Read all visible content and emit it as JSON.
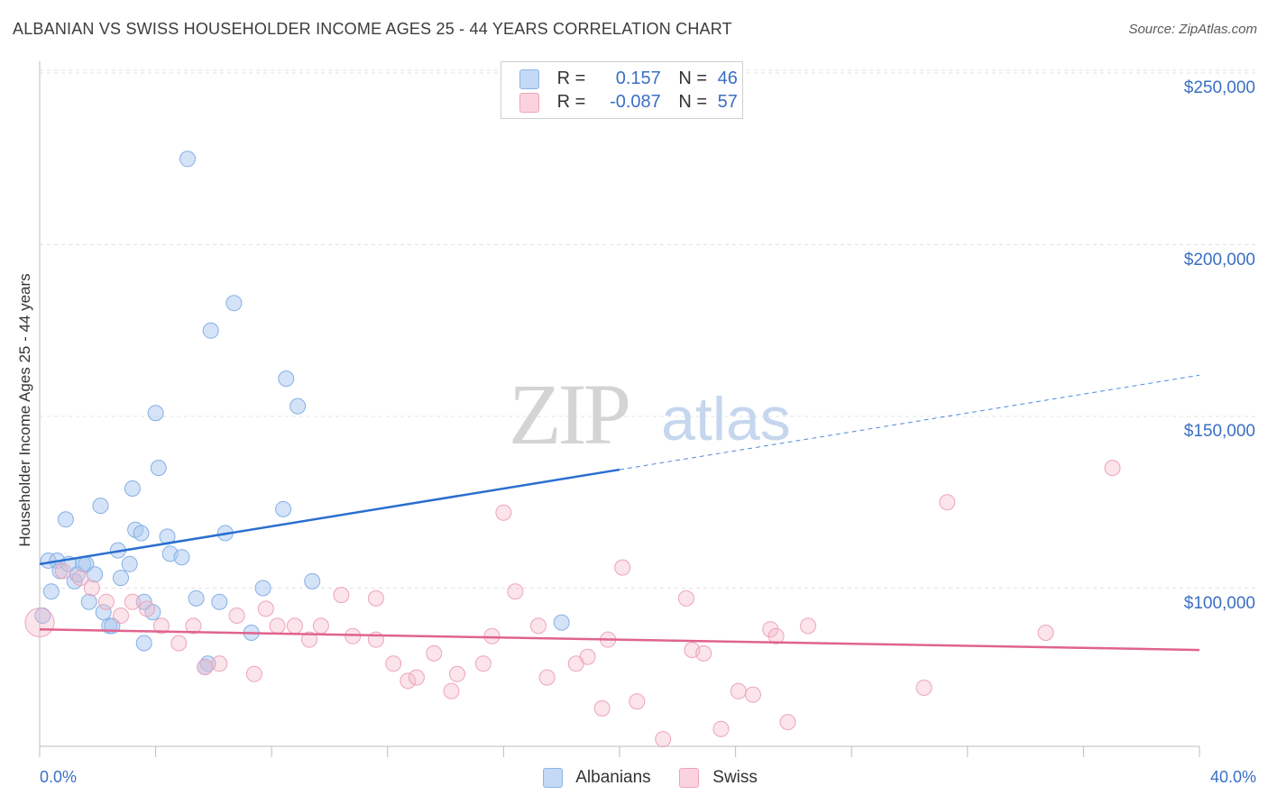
{
  "title": "ALBANIAN VS SWISS HOUSEHOLDER INCOME AGES 25 - 44 YEARS CORRELATION CHART",
  "source": "Source: ZipAtlas.com",
  "watermark": {
    "zip": "ZIP",
    "atlas": "atlas"
  },
  "legend": {
    "rows": [
      {
        "r_label": "R =",
        "r_value": "0.157",
        "n_label": "N =",
        "n_value": "46",
        "color": "#a9c8ef"
      },
      {
        "r_label": "R =",
        "r_value": "-0.087",
        "n_label": "N =",
        "n_value": "57",
        "color": "#f5b7c9"
      }
    ]
  },
  "bottom_legend": {
    "albanians": "Albanians",
    "swiss": "Swiss"
  },
  "chart_data": {
    "type": "scatter",
    "title": "ALBANIAN VS SWISS HOUSEHOLDER INCOME AGES 25 - 44 YEARS CORRELATION CHART",
    "xlabel": "",
    "ylabel": "Householder Income Ages 25 - 44 years",
    "xlim": [
      0,
      40
    ],
    "ylim": [
      45000,
      260000
    ],
    "x_tick_labels": [
      "0.0%",
      "40.0%"
    ],
    "y_ticks": [
      100000,
      150000,
      200000,
      250000
    ],
    "y_tick_labels": [
      "$100,000",
      "$150,000",
      "$200,000",
      "$250,000"
    ],
    "grid": true,
    "colors": {
      "albanians": "#a9c8ef",
      "albanians_line": "#2a6fd0",
      "swiss": "#f5b7c9",
      "swiss_line": "#e0638f"
    },
    "series": [
      {
        "name": "Albanians",
        "points": [
          [
            0.1,
            92000
          ],
          [
            0.3,
            108000
          ],
          [
            0.4,
            99000
          ],
          [
            0.6,
            108000
          ],
          [
            0.7,
            105000
          ],
          [
            0.9,
            120000
          ],
          [
            1.0,
            107000
          ],
          [
            1.2,
            102000
          ],
          [
            1.3,
            104000
          ],
          [
            1.5,
            107000
          ],
          [
            1.6,
            107000
          ],
          [
            1.7,
            96000
          ],
          [
            1.9,
            104000
          ],
          [
            2.1,
            124000
          ],
          [
            2.2,
            93000
          ],
          [
            2.4,
            89000
          ],
          [
            2.5,
            89000
          ],
          [
            2.7,
            111000
          ],
          [
            2.8,
            103000
          ],
          [
            3.1,
            107000
          ],
          [
            3.2,
            129000
          ],
          [
            3.3,
            117000
          ],
          [
            3.5,
            116000
          ],
          [
            3.6,
            84000
          ],
          [
            3.6,
            96000
          ],
          [
            3.9,
            93000
          ],
          [
            4.0,
            151000
          ],
          [
            4.1,
            135000
          ],
          [
            4.4,
            115000
          ],
          [
            4.5,
            110000
          ],
          [
            4.9,
            109000
          ],
          [
            5.1,
            225000
          ],
          [
            5.4,
            97000
          ],
          [
            5.8,
            78000
          ],
          [
            5.9,
            175000
          ],
          [
            6.2,
            96000
          ],
          [
            6.4,
            116000
          ],
          [
            6.7,
            183000
          ],
          [
            7.3,
            87000
          ],
          [
            7.7,
            100000
          ],
          [
            8.4,
            123000
          ],
          [
            8.5,
            161000
          ],
          [
            8.9,
            153000
          ],
          [
            9.4,
            102000
          ],
          [
            18.0,
            90000
          ],
          [
            5.7,
            77000
          ]
        ],
        "trend": {
          "x": [
            0,
            40
          ],
          "y": [
            107000,
            162000
          ],
          "solid_until_x": 20
        }
      },
      {
        "name": "Swiss",
        "points": [
          [
            0.0,
            90000
          ],
          [
            0.8,
            105000
          ],
          [
            1.4,
            103000
          ],
          [
            1.8,
            100000
          ],
          [
            2.3,
            96000
          ],
          [
            2.8,
            92000
          ],
          [
            3.2,
            96000
          ],
          [
            3.7,
            94000
          ],
          [
            4.2,
            89000
          ],
          [
            4.8,
            84000
          ],
          [
            5.3,
            89000
          ],
          [
            5.7,
            77000
          ],
          [
            6.2,
            78000
          ],
          [
            6.8,
            92000
          ],
          [
            7.4,
            75000
          ],
          [
            7.8,
            94000
          ],
          [
            8.2,
            89000
          ],
          [
            8.8,
            89000
          ],
          [
            9.3,
            85000
          ],
          [
            9.7,
            89000
          ],
          [
            10.4,
            98000
          ],
          [
            10.8,
            86000
          ],
          [
            11.6,
            85000
          ],
          [
            11.6,
            97000
          ],
          [
            12.2,
            78000
          ],
          [
            12.7,
            73000
          ],
          [
            13.0,
            74000
          ],
          [
            13.6,
            81000
          ],
          [
            14.2,
            70000
          ],
          [
            14.4,
            75000
          ],
          [
            15.3,
            78000
          ],
          [
            15.6,
            86000
          ],
          [
            16.0,
            122000
          ],
          [
            16.4,
            99000
          ],
          [
            17.2,
            89000
          ],
          [
            17.5,
            74000
          ],
          [
            18.5,
            78000
          ],
          [
            18.9,
            80000
          ],
          [
            19.4,
            65000
          ],
          [
            19.6,
            85000
          ],
          [
            20.1,
            106000
          ],
          [
            20.6,
            67000
          ],
          [
            21.5,
            56000
          ],
          [
            22.3,
            97000
          ],
          [
            22.5,
            82000
          ],
          [
            22.9,
            81000
          ],
          [
            23.5,
            59000
          ],
          [
            24.1,
            70000
          ],
          [
            24.6,
            69000
          ],
          [
            25.2,
            88000
          ],
          [
            25.4,
            86000
          ],
          [
            25.8,
            61000
          ],
          [
            26.5,
            89000
          ],
          [
            30.5,
            71000
          ],
          [
            31.3,
            125000
          ],
          [
            34.7,
            87000
          ],
          [
            37.0,
            135000
          ]
        ],
        "trend": {
          "x": [
            0,
            40
          ],
          "y": [
            88000,
            82000
          ]
        }
      }
    ]
  }
}
